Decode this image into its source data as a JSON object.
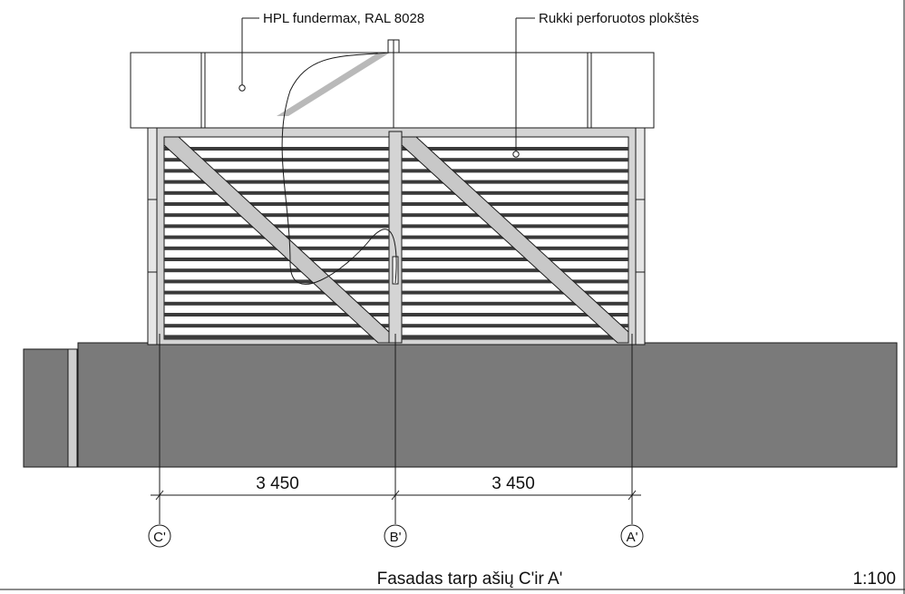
{
  "callouts": {
    "hpl": "HPL fundermax, RAL 8028",
    "rukki": "Rukki perforuotos plokštės"
  },
  "dimensions": {
    "left": "3 450",
    "right": "3 450"
  },
  "axes": [
    "C'",
    "B'",
    "A'"
  ],
  "title": "Fasadas tarp ašių C'ir A'",
  "scale": "1:100",
  "colors": {
    "ground": "#7a7a7a",
    "line": "#1a1a1a",
    "frame": "#d4d4d4",
    "slat": "#3a3a3a",
    "diagonal": "#c4c4c4"
  }
}
